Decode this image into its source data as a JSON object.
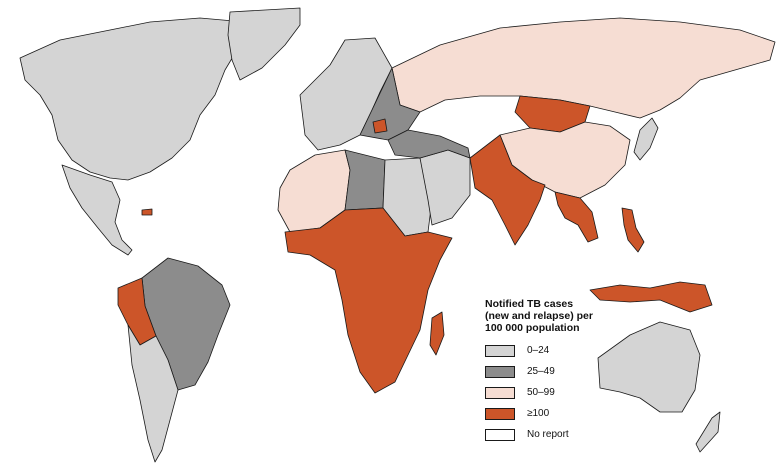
{
  "legend": {
    "title": "Notified TB cases\n(new and relapse) per\n100 000 population",
    "items": [
      {
        "label": "0–24",
        "color": "#d4d4d4"
      },
      {
        "label": "25–49",
        "color": "#8c8c8c"
      },
      {
        "label": "50–99",
        "color": "#f6ddd3"
      },
      {
        "label": "≥100",
        "color": "#cc5529"
      },
      {
        "label": "No report",
        "color": "#ffffff"
      }
    ]
  },
  "regions": [
    {
      "name": "north-america",
      "category": "0–24"
    },
    {
      "name": "greenland",
      "category": "0–24"
    },
    {
      "name": "mexico-central-america",
      "category": "0–24"
    },
    {
      "name": "haiti",
      "category": "≥100"
    },
    {
      "name": "brazil",
      "category": "25–49"
    },
    {
      "name": "peru-bolivia",
      "category": "≥100"
    },
    {
      "name": "southern-cone",
      "category": "0–24"
    },
    {
      "name": "russia",
      "category": "50–99"
    },
    {
      "name": "western-europe",
      "category": "0–24"
    },
    {
      "name": "eastern-europe",
      "category": "25–49"
    },
    {
      "name": "romania",
      "category": "≥100"
    },
    {
      "name": "north-africa",
      "category": "50–99"
    },
    {
      "name": "libya",
      "category": "25–49"
    },
    {
      "name": "egypt-sudan",
      "category": "0–24"
    },
    {
      "name": "sub-saharan-africa",
      "category": "≥100"
    },
    {
      "name": "madagascar",
      "category": "≥100"
    },
    {
      "name": "middle-east",
      "category": "0–24"
    },
    {
      "name": "turkey-iran",
      "category": "25–49"
    },
    {
      "name": "mongolia",
      "category": "≥100"
    },
    {
      "name": "china",
      "category": "50–99"
    },
    {
      "name": "south-asia",
      "category": "≥100"
    },
    {
      "name": "southeast-asia",
      "category": "≥100"
    },
    {
      "name": "indonesia-png",
      "category": "≥100"
    },
    {
      "name": "philippines",
      "category": "≥100"
    },
    {
      "name": "japan",
      "category": "0–24"
    },
    {
      "name": "australia",
      "category": "0–24"
    },
    {
      "name": "new-zealand",
      "category": "0–24"
    }
  ]
}
